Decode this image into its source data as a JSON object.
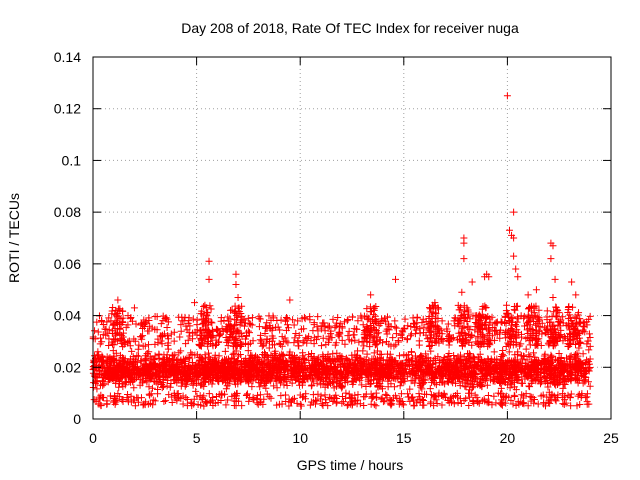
{
  "chart_data": {
    "type": "scatter",
    "title": "Day 208 of 2018, Rate Of TEC Index for receiver nuga",
    "xlabel": "GPS time / hours",
    "ylabel": "ROTI / TECUs",
    "xlim": [
      0,
      25
    ],
    "ylim": [
      0,
      0.14
    ],
    "xticks": [
      0,
      5,
      10,
      15,
      20,
      25
    ],
    "xtick_labels": [
      "0",
      "5",
      "10",
      "15",
      "20",
      "25"
    ],
    "yticks": [
      0,
      0.02,
      0.04,
      0.06,
      0.08,
      0.1,
      0.12,
      0.14
    ],
    "ytick_labels": [
      "0",
      "0.02",
      "0.04",
      "0.06",
      "0.08",
      "0.1",
      "0.12",
      "0.14"
    ],
    "grid": true,
    "marker": "+",
    "color": "#ff0000",
    "series": [
      {
        "name": "ROTI",
        "bulk": {
          "x_range": [
            0,
            24
          ],
          "y_band": [
            0.01,
            0.028
          ],
          "y_min": 0.005,
          "y_max_typical": 0.04,
          "note": "dense band of several thousand points"
        },
        "outliers": [
          {
            "x": 5.6,
            "y": 0.061
          },
          {
            "x": 5.6,
            "y": 0.054
          },
          {
            "x": 5.4,
            "y": 0.044
          },
          {
            "x": 6.9,
            "y": 0.056
          },
          {
            "x": 6.9,
            "y": 0.052
          },
          {
            "x": 7.0,
            "y": 0.047
          },
          {
            "x": 7.05,
            "y": 0.043
          },
          {
            "x": 1.2,
            "y": 0.046
          },
          {
            "x": 1.1,
            "y": 0.042
          },
          {
            "x": 14.6,
            "y": 0.054
          },
          {
            "x": 13.4,
            "y": 0.048
          },
          {
            "x": 17.9,
            "y": 0.07
          },
          {
            "x": 17.9,
            "y": 0.068
          },
          {
            "x": 17.9,
            "y": 0.062
          },
          {
            "x": 17.8,
            "y": 0.049
          },
          {
            "x": 18.3,
            "y": 0.053
          },
          {
            "x": 18.9,
            "y": 0.055
          },
          {
            "x": 19.0,
            "y": 0.056
          },
          {
            "x": 19.1,
            "y": 0.055
          },
          {
            "x": 20.0,
            "y": 0.125
          },
          {
            "x": 20.3,
            "y": 0.08
          },
          {
            "x": 20.1,
            "y": 0.073
          },
          {
            "x": 20.2,
            "y": 0.071
          },
          {
            "x": 20.3,
            "y": 0.07
          },
          {
            "x": 20.3,
            "y": 0.063
          },
          {
            "x": 20.4,
            "y": 0.058
          },
          {
            "x": 20.5,
            "y": 0.055
          },
          {
            "x": 22.1,
            "y": 0.068
          },
          {
            "x": 22.2,
            "y": 0.067
          },
          {
            "x": 22.1,
            "y": 0.062
          },
          {
            "x": 22.3,
            "y": 0.054
          },
          {
            "x": 22.2,
            "y": 0.047
          },
          {
            "x": 23.1,
            "y": 0.053
          },
          {
            "x": 23.3,
            "y": 0.048
          },
          {
            "x": 21.4,
            "y": 0.05
          },
          {
            "x": 21.0,
            "y": 0.048
          },
          {
            "x": 16.5,
            "y": 0.045
          },
          {
            "x": 9.5,
            "y": 0.046
          },
          {
            "x": 4.9,
            "y": 0.045
          },
          {
            "x": 2.0,
            "y": 0.043
          }
        ]
      }
    ]
  }
}
